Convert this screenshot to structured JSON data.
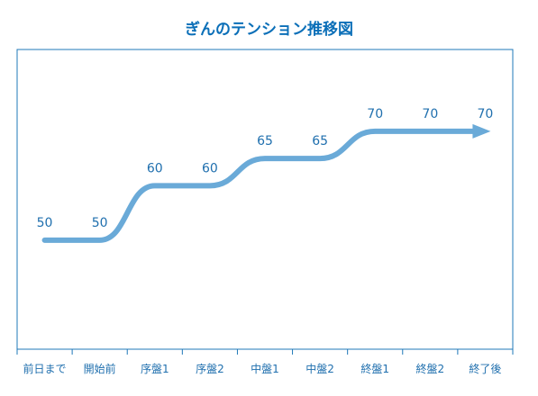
{
  "chart_data": {
    "type": "line",
    "title": "ぎんのテンション推移図",
    "categories": [
      "前日まで",
      "開始前",
      "序盤1",
      "序盤2",
      "中盤1",
      "中盤2",
      "終盤1",
      "終盤2",
      "終了後"
    ],
    "values": [
      50,
      50,
      60,
      60,
      65,
      65,
      70,
      70,
      70
    ],
    "xlabel": "",
    "ylabel": "",
    "ylim": [
      30,
      85
    ],
    "grid": false,
    "line_color": "#6aaad8",
    "label_color": "#1f6fae",
    "frame_color": "#1f78b8",
    "end_marker": "arrow"
  }
}
